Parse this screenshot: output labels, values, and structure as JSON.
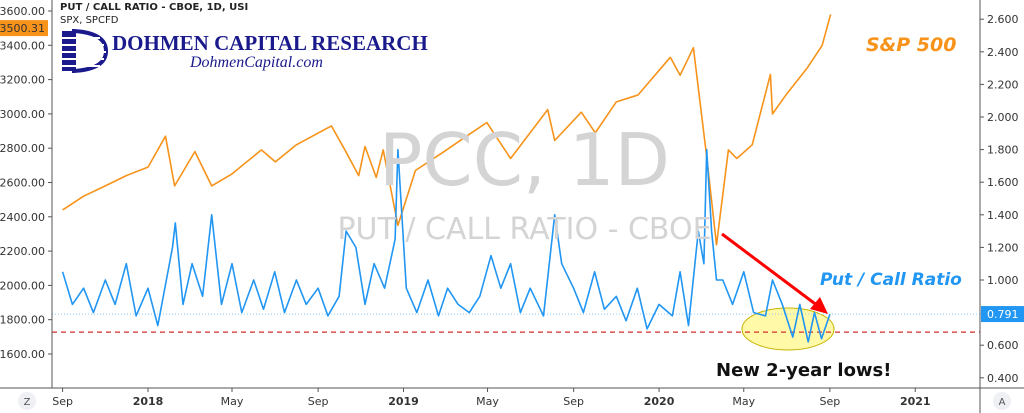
{
  "header": {
    "title": "PUT / CALL RATIO - CBOE, 1D, USI",
    "subtitle": "SPX, SPCFD"
  },
  "logo": {
    "name": "DOHMEN CAPITAL RESEARCH",
    "url": "DohmenCapital.com"
  },
  "watermark": {
    "symbol": "PCC, 1D",
    "name": "PUT / CALL RATIO - CBOE"
  },
  "annotations": {
    "spx": "S&P 500",
    "pcc": "Put / Call Ratio",
    "lows": "New 2-year lows!"
  },
  "buttons": {
    "left_scale": "Z",
    "right_scale": "A"
  },
  "colors": {
    "spx": "#f7931a",
    "pcc": "#2196f3",
    "arrow": "#ff0000",
    "lows_fill": "#fff9a8",
    "support": "#d32f2f"
  },
  "chart_data": {
    "type": "line",
    "grid": false,
    "x_ticks": [
      {
        "date": "2017-09-01",
        "label": "Sep"
      },
      {
        "date": "2018-01-01",
        "label": "2018"
      },
      {
        "date": "2018-05-01",
        "label": "May"
      },
      {
        "date": "2018-09-01",
        "label": "Sep"
      },
      {
        "date": "2019-01-01",
        "label": "2019"
      },
      {
        "date": "2019-05-01",
        "label": "May"
      },
      {
        "date": "2019-09-01",
        "label": "Sep"
      },
      {
        "date": "2020-01-01",
        "label": "2020"
      },
      {
        "date": "2020-05-01",
        "label": "May"
      },
      {
        "date": "2020-09-01",
        "label": "Sep"
      },
      {
        "date": "2021-01-01",
        "label": "2021"
      }
    ],
    "left_axis": {
      "ticks": [
        "3600.00",
        "3400.00",
        "3200.00",
        "3000.00",
        "2800.00",
        "2600.00",
        "2400.00",
        "2200.00",
        "2000.00",
        "1800.00",
        "1600.00"
      ],
      "range": [
        1600,
        3600
      ],
      "last_value": "3500.31"
    },
    "right_axis": {
      "ticks": [
        "2.600",
        "2.400",
        "2.200",
        "2.000",
        "1.800",
        "1.600",
        "1.400",
        "1.200",
        "1.000",
        "0.600",
        "0.400"
      ],
      "range": [
        0.4,
        2.6
      ],
      "last_value": "0.791"
    },
    "support_level": 0.68,
    "series": [
      {
        "name": "S&P 500",
        "axis": "left",
        "points": [
          [
            "2017-09-01",
            2440
          ],
          [
            "2017-10-01",
            2520
          ],
          [
            "2017-11-01",
            2580
          ],
          [
            "2017-12-01",
            2640
          ],
          [
            "2018-01-01",
            2690
          ],
          [
            "2018-01-26",
            2870
          ],
          [
            "2018-02-08",
            2580
          ],
          [
            "2018-03-09",
            2780
          ],
          [
            "2018-04-02",
            2580
          ],
          [
            "2018-05-01",
            2650
          ],
          [
            "2018-06-12",
            2790
          ],
          [
            "2018-07-02",
            2720
          ],
          [
            "2018-08-01",
            2820
          ],
          [
            "2018-09-20",
            2930
          ],
          [
            "2018-10-10",
            2785
          ],
          [
            "2018-10-29",
            2640
          ],
          [
            "2018-11-07",
            2810
          ],
          [
            "2018-11-23",
            2630
          ],
          [
            "2018-12-03",
            2790
          ],
          [
            "2018-12-24",
            2350
          ],
          [
            "2019-01-18",
            2670
          ],
          [
            "2019-02-28",
            2780
          ],
          [
            "2019-04-01",
            2870
          ],
          [
            "2019-04-30",
            2950
          ],
          [
            "2019-06-03",
            2740
          ],
          [
            "2019-07-26",
            3025
          ],
          [
            "2019-08-05",
            2845
          ],
          [
            "2019-09-12",
            3010
          ],
          [
            "2019-10-02",
            2890
          ],
          [
            "2019-11-01",
            3070
          ],
          [
            "2019-12-02",
            3110
          ],
          [
            "2020-01-17",
            3330
          ],
          [
            "2020-01-31",
            3225
          ],
          [
            "2020-02-19",
            3386
          ],
          [
            "2020-03-09",
            2750
          ],
          [
            "2020-03-23",
            2237
          ],
          [
            "2020-04-09",
            2790
          ],
          [
            "2020-04-21",
            2740
          ],
          [
            "2020-05-13",
            2820
          ],
          [
            "2020-06-08",
            3230
          ],
          [
            "2020-06-11",
            3000
          ],
          [
            "2020-07-01",
            3115
          ],
          [
            "2020-07-31",
            3270
          ],
          [
            "2020-08-21",
            3400
          ],
          [
            "2020-09-02",
            3580
          ]
        ]
      },
      {
        "name": "Put / Call Ratio",
        "axis": "right",
        "points": [
          [
            "2017-09-01",
            1.05
          ],
          [
            "2017-09-15",
            0.85
          ],
          [
            "2017-10-01",
            0.95
          ],
          [
            "2017-10-15",
            0.8
          ],
          [
            "2017-11-01",
            1.0
          ],
          [
            "2017-11-15",
            0.85
          ],
          [
            "2017-12-01",
            1.1
          ],
          [
            "2017-12-15",
            0.78
          ],
          [
            "2018-01-01",
            0.95
          ],
          [
            "2018-01-15",
            0.72
          ],
          [
            "2018-02-05",
            1.2
          ],
          [
            "2018-02-09",
            1.35
          ],
          [
            "2018-02-20",
            0.85
          ],
          [
            "2018-03-05",
            1.1
          ],
          [
            "2018-03-20",
            0.9
          ],
          [
            "2018-04-02",
            1.4
          ],
          [
            "2018-04-16",
            0.85
          ],
          [
            "2018-05-01",
            1.1
          ],
          [
            "2018-05-15",
            0.8
          ],
          [
            "2018-06-01",
            1.0
          ],
          [
            "2018-06-15",
            0.82
          ],
          [
            "2018-07-01",
            1.05
          ],
          [
            "2018-07-15",
            0.8
          ],
          [
            "2018-08-01",
            1.0
          ],
          [
            "2018-08-15",
            0.85
          ],
          [
            "2018-09-01",
            0.95
          ],
          [
            "2018-09-15",
            0.78
          ],
          [
            "2018-10-01",
            0.9
          ],
          [
            "2018-10-11",
            1.3
          ],
          [
            "2018-10-25",
            1.2
          ],
          [
            "2018-11-07",
            0.85
          ],
          [
            "2018-11-20",
            1.1
          ],
          [
            "2018-12-05",
            0.95
          ],
          [
            "2018-12-20",
            1.25
          ],
          [
            "2018-12-24",
            1.8
          ],
          [
            "2019-01-05",
            0.95
          ],
          [
            "2019-01-20",
            0.8
          ],
          [
            "2019-02-05",
            1.0
          ],
          [
            "2019-02-20",
            0.78
          ],
          [
            "2019-03-05",
            0.95
          ],
          [
            "2019-03-20",
            0.85
          ],
          [
            "2019-04-05",
            0.8
          ],
          [
            "2019-04-20",
            0.9
          ],
          [
            "2019-05-06",
            1.15
          ],
          [
            "2019-05-20",
            0.95
          ],
          [
            "2019-06-03",
            1.1
          ],
          [
            "2019-06-17",
            0.8
          ],
          [
            "2019-07-01",
            0.95
          ],
          [
            "2019-07-20",
            0.78
          ],
          [
            "2019-08-05",
            1.4
          ],
          [
            "2019-08-15",
            1.1
          ],
          [
            "2019-09-01",
            0.95
          ],
          [
            "2019-09-15",
            0.8
          ],
          [
            "2019-10-01",
            1.05
          ],
          [
            "2019-10-15",
            0.82
          ],
          [
            "2019-11-01",
            0.9
          ],
          [
            "2019-11-15",
            0.75
          ],
          [
            "2019-12-01",
            0.95
          ],
          [
            "2019-12-15",
            0.7
          ],
          [
            "2020-01-01",
            0.85
          ],
          [
            "2020-01-20",
            0.78
          ],
          [
            "2020-01-31",
            1.05
          ],
          [
            "2020-02-12",
            0.72
          ],
          [
            "2020-02-26",
            1.3
          ],
          [
            "2020-03-05",
            1.1
          ],
          [
            "2020-03-09",
            1.8
          ],
          [
            "2020-03-16",
            1.3
          ],
          [
            "2020-03-23",
            1.0
          ],
          [
            "2020-04-01",
            1.0
          ],
          [
            "2020-04-15",
            0.85
          ],
          [
            "2020-05-01",
            1.05
          ],
          [
            "2020-05-15",
            0.8
          ],
          [
            "2020-06-01",
            0.78
          ],
          [
            "2020-06-11",
            1.0
          ],
          [
            "2020-06-25",
            0.85
          ],
          [
            "2020-07-10",
            0.65
          ],
          [
            "2020-07-20",
            0.85
          ],
          [
            "2020-08-01",
            0.62
          ],
          [
            "2020-08-10",
            0.8
          ],
          [
            "2020-08-20",
            0.64
          ],
          [
            "2020-09-01",
            0.79
          ]
        ]
      }
    ]
  }
}
